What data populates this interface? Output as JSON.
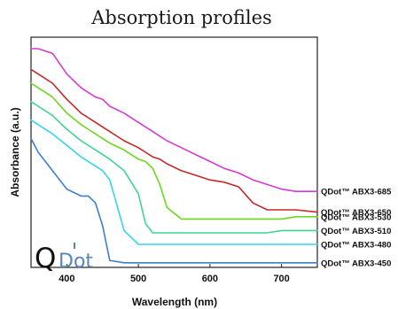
{
  "chart_data": {
    "type": "line",
    "title": "Absorption profiles",
    "xlabel": "Wavelength (nm)",
    "ylabel": "Absorbance (a.u.)",
    "xlim": [
      350,
      750
    ],
    "ylim": [
      0,
      1
    ],
    "x_ticks": [
      400,
      500,
      600,
      700
    ],
    "grid": false,
    "legend": "series labels at right end of each curve",
    "x": [
      350,
      360,
      380,
      400,
      420,
      430,
      440,
      450,
      460,
      480,
      500,
      510,
      520,
      530,
      540,
      560,
      580,
      600,
      620,
      640,
      660,
      680,
      700,
      720,
      750
    ],
    "series": [
      {
        "name": "QDot™ ABX3-685",
        "color": "#d63ad6",
        "values": [
          0.95,
          0.95,
          0.93,
          0.84,
          0.78,
          0.76,
          0.74,
          0.73,
          0.7,
          0.67,
          0.63,
          0.61,
          0.59,
          0.57,
          0.55,
          0.52,
          0.49,
          0.46,
          0.43,
          0.41,
          0.38,
          0.36,
          0.34,
          0.33,
          0.33
        ]
      },
      {
        "name": "QDot™ ABX3-650",
        "color": "#c42a2a",
        "values": [
          0.86,
          0.84,
          0.8,
          0.73,
          0.67,
          0.65,
          0.63,
          0.61,
          0.59,
          0.55,
          0.52,
          0.5,
          0.48,
          0.47,
          0.45,
          0.42,
          0.4,
          0.38,
          0.37,
          0.35,
          0.28,
          0.25,
          0.25,
          0.25,
          0.24
        ]
      },
      {
        "name": "QDot™ ABX3-530",
        "color": "#6fd61e",
        "values": [
          0.8,
          0.78,
          0.74,
          0.67,
          0.62,
          0.6,
          0.58,
          0.56,
          0.54,
          0.51,
          0.47,
          0.46,
          0.43,
          0.36,
          0.26,
          0.21,
          0.21,
          0.21,
          0.21,
          0.21,
          0.21,
          0.21,
          0.21,
          0.22,
          0.22
        ]
      },
      {
        "name": "QDot™ ABX3-510",
        "color": "#3fd494",
        "values": [
          0.72,
          0.7,
          0.66,
          0.6,
          0.55,
          0.53,
          0.51,
          0.49,
          0.47,
          0.42,
          0.32,
          0.19,
          0.15,
          0.15,
          0.15,
          0.15,
          0.15,
          0.15,
          0.15,
          0.15,
          0.15,
          0.15,
          0.16,
          0.16,
          0.16
        ]
      },
      {
        "name": "QDot™ ABX3-480",
        "color": "#36d4ea",
        "values": [
          0.64,
          0.62,
          0.58,
          0.53,
          0.48,
          0.46,
          0.44,
          0.42,
          0.38,
          0.16,
          0.1,
          0.1,
          0.1,
          0.1,
          0.1,
          0.1,
          0.1,
          0.1,
          0.1,
          0.1,
          0.1,
          0.1,
          0.1,
          0.1,
          0.1
        ]
      },
      {
        "name": "QDot™ ABX3-450",
        "color": "#3d80cc",
        "values": [
          0.56,
          0.5,
          0.42,
          0.34,
          0.31,
          0.31,
          0.28,
          0.18,
          0.03,
          0.02,
          0.02,
          0.02,
          0.02,
          0.02,
          0.02,
          0.02,
          0.02,
          0.02,
          0.02,
          0.02,
          0.02,
          0.02,
          0.02,
          0.02,
          0.02
        ]
      }
    ]
  },
  "logo": {
    "text_q": "Q",
    "text_dot": "Dot"
  }
}
